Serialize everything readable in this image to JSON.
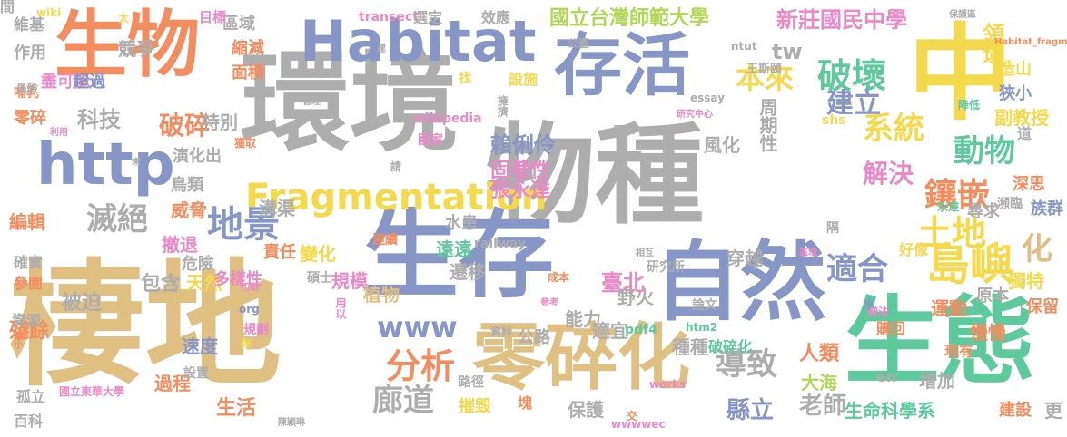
{
  "palette": {
    "tan": "#e0bf83",
    "blue": "#8796c6",
    "gray": "#adadad",
    "orange": "#f38c5f",
    "yellow": "#f5d94d",
    "green": "#5ec99c",
    "pink": "#e98ac5",
    "lime": "#b2d65a"
  },
  "words": [
    {
      "text": "棲地",
      "color": "tan"
    },
    {
      "text": "環境",
      "color": "gray"
    },
    {
      "text": "物種",
      "color": "gray"
    },
    {
      "text": "生存",
      "color": "blue"
    },
    {
      "text": "生態",
      "color": "green"
    },
    {
      "text": "生物",
      "color": "orange"
    },
    {
      "text": "中",
      "color": "yellow"
    },
    {
      "text": "自然",
      "color": "blue"
    },
    {
      "text": "零碎化",
      "color": "tan"
    },
    {
      "text": "存活",
      "color": "blue"
    },
    {
      "text": "Habitat",
      "color": "blue"
    },
    {
      "text": "http",
      "color": "blue"
    },
    {
      "text": "Fragmentation",
      "color": "yellow"
    },
    {
      "text": "www",
      "color": "blue"
    },
    {
      "text": "破壞",
      "color": "green"
    },
    {
      "text": "島嶼",
      "color": "yellow"
    },
    {
      "text": "鑲嵌",
      "color": "orange"
    },
    {
      "text": "土地",
      "color": "yellow"
    },
    {
      "text": "地景",
      "color": "blue"
    },
    {
      "text": "滅絕",
      "color": "gray"
    },
    {
      "text": "分析",
      "color": "orange"
    },
    {
      "text": "廊道",
      "color": "gray"
    },
    {
      "text": "導致",
      "color": "gray"
    },
    {
      "text": "適合",
      "color": "blue"
    },
    {
      "text": "系統",
      "color": "yellow"
    },
    {
      "text": "動物",
      "color": "green"
    },
    {
      "text": "本來",
      "color": "yellow"
    },
    {
      "text": "建立",
      "color": "blue"
    },
    {
      "text": "解決",
      "color": "pink"
    },
    {
      "text": "破碎",
      "color": "orange"
    },
    {
      "text": "科技",
      "color": "gray"
    },
    {
      "text": "tw",
      "color": "gray"
    },
    {
      "text": "化",
      "color": "tan"
    },
    {
      "text": "新莊國民中學",
      "color": "pink"
    },
    {
      "text": "國立台灣師範大學",
      "color": "lime"
    },
    {
      "text": "領域",
      "color": "yellow"
    },
    {
      "text": "臺北",
      "color": "pink"
    },
    {
      "text": "縣立",
      "color": "blue"
    },
    {
      "text": "老師",
      "color": "gray"
    },
    {
      "text": "賴俐伶",
      "color": "blue"
    },
    {
      "text": "固著性",
      "color": "pink"
    },
    {
      "text": "張永達",
      "color": "pink"
    },
    {
      "text": "周期性",
      "color": "gray"
    },
    {
      "text": "副教授",
      "color": "yellow"
    },
    {
      "text": "狹小",
      "color": "blue"
    },
    {
      "text": "造山",
      "color": "yellow"
    },
    {
      "text": "獨特",
      "color": "yellow"
    },
    {
      "text": "保留",
      "color": "orange"
    },
    {
      "text": "原本",
      "color": "gray"
    },
    {
      "text": "運動",
      "color": "orange"
    },
    {
      "text": "慢慢",
      "color": "orange"
    },
    {
      "text": "購回",
      "color": "orange"
    },
    {
      "text": "好像",
      "color": "yellow"
    },
    {
      "text": "增加",
      "color": "gray"
    },
    {
      "text": "大海",
      "color": "lime"
    },
    {
      "text": "人類",
      "color": "orange"
    },
    {
      "text": "生命科學系",
      "color": "green"
    },
    {
      "text": "建設",
      "color": "orange"
    },
    {
      "text": "更",
      "color": "gray"
    },
    {
      "text": "現有",
      "color": "orange"
    },
    {
      "text": "辦法",
      "color": "pink"
    },
    {
      "text": "穿越",
      "color": "gray"
    },
    {
      "text": "野火",
      "color": "gray"
    },
    {
      "text": "能力",
      "color": "gray"
    },
    {
      "text": "遷移",
      "color": "gray"
    },
    {
      "text": "遠遠",
      "color": "green"
    },
    {
      "text": "水患",
      "color": "gray"
    },
    {
      "text": "適宜",
      "color": "gray"
    },
    {
      "text": "公路",
      "color": "gray"
    },
    {
      "text": "種種",
      "color": "gray"
    },
    {
      "text": "破碎化",
      "color": "green"
    },
    {
      "text": "摧毀",
      "color": "yellow"
    },
    {
      "text": "保護",
      "color": "gray"
    },
    {
      "text": "生活",
      "color": "orange"
    },
    {
      "text": "過程",
      "color": "orange"
    },
    {
      "text": "速度",
      "color": "blue"
    },
    {
      "text": "天然",
      "color": "yellow"
    },
    {
      "text": "危險",
      "color": "gray"
    },
    {
      "text": "包含",
      "color": "gray"
    },
    {
      "text": "被迫",
      "color": "gray"
    },
    {
      "text": "殘餘",
      "color": "orange"
    },
    {
      "text": "編輯",
      "color": "orange"
    },
    {
      "text": "撤退",
      "color": "pink"
    },
    {
      "text": "威脅",
      "color": "orange"
    },
    {
      "text": "鳥類",
      "color": "gray"
    },
    {
      "text": "演化出",
      "color": "gray"
    },
    {
      "text": "溝渠",
      "color": "gray"
    },
    {
      "text": "責任",
      "color": "orange"
    },
    {
      "text": "變化",
      "color": "yellow"
    },
    {
      "text": "規模",
      "color": "pink"
    },
    {
      "text": "多樣性",
      "color": "pink"
    },
    {
      "text": "植物",
      "color": "tan"
    },
    {
      "text": "特別",
      "color": "gray"
    },
    {
      "text": "風化",
      "color": "gray"
    },
    {
      "text": "擁擠",
      "color": "gray"
    },
    {
      "text": "設施",
      "color": "yellow"
    },
    {
      "text": "找",
      "color": "yellow"
    },
    {
      "text": "縮減",
      "color": "orange"
    },
    {
      "text": "面積",
      "color": "orange"
    },
    {
      "text": "區域",
      "color": "gray"
    },
    {
      "text": "目標",
      "color": "pink"
    },
    {
      "text": "太",
      "color": "yellow"
    },
    {
      "text": "維基",
      "color": "gray"
    },
    {
      "text": "作用",
      "color": "gray"
    },
    {
      "text": "競爭",
      "color": "gray"
    },
    {
      "text": "盡可能",
      "color": "pink"
    },
    {
      "text": "超過",
      "color": "blue"
    },
    {
      "text": "零碎",
      "color": "orange"
    },
    {
      "text": "哺乳",
      "color": "orange"
    },
    {
      "text": "風險",
      "color": "gray"
    },
    {
      "text": "wiki",
      "color": "yellow"
    },
    {
      "text": "transect",
      "color": "pink"
    },
    {
      "text": "選定",
      "color": "gray"
    },
    {
      "text": "效應",
      "color": "gray"
    },
    {
      "text": "保護區",
      "color": "gray"
    },
    {
      "text": "Habitat_fragmentation",
      "color": "orange"
    },
    {
      "text": "王斯頤",
      "color": "gray"
    },
    {
      "text": "ntut",
      "color": "gray"
    },
    {
      "text": "公園",
      "color": "gray"
    },
    {
      "text": "wikipedia",
      "color": "pink"
    },
    {
      "text": "需求",
      "color": "gray"
    },
    {
      "text": "國家",
      "color": "pink"
    },
    {
      "text": "請",
      "color": "gray"
    },
    {
      "text": "獲取",
      "color": "orange"
    },
    {
      "text": "研究中心",
      "color": "pink"
    },
    {
      "text": "essay",
      "color": "gray"
    },
    {
      "text": "shs",
      "color": "yellow"
    },
    {
      "text": "降低",
      "color": "green"
    },
    {
      "text": "道",
      "color": "gray"
    },
    {
      "text": "深思",
      "color": "orange"
    },
    {
      "text": "尋求",
      "color": "gray"
    },
    {
      "text": "瀕臨",
      "color": "gray"
    },
    {
      "text": "族群",
      "color": "blue"
    },
    {
      "text": "永遠",
      "color": "green"
    },
    {
      "text": "隔",
      "color": "gray"
    },
    {
      "text": "連續",
      "color": "orange"
    },
    {
      "text": "railway",
      "color": "gray"
    },
    {
      "text": "相互",
      "color": "gray"
    },
    {
      "text": "研究所",
      "color": "gray"
    },
    {
      "text": "區塊",
      "color": "pink"
    },
    {
      "text": "成本",
      "color": "orange"
    },
    {
      "text": "參考",
      "color": "pink"
    },
    {
      "text": "論文",
      "color": "gray"
    },
    {
      "text": "htm2",
      "color": "green"
    },
    {
      "text": "pdf4",
      "color": "green"
    },
    {
      "text": "資料",
      "color": "gray"
    },
    {
      "text": "水",
      "color": "blue"
    },
    {
      "text": "works",
      "color": "pink"
    },
    {
      "text": "en",
      "color": "gray"
    },
    {
      "text": "塊",
      "color": "orange"
    },
    {
      "text": "交",
      "color": "orange"
    },
    {
      "text": "wwwwec",
      "color": "pink"
    },
    {
      "text": "陳穎琳",
      "color": "gray"
    },
    {
      "text": "國立東華大學",
      "color": "pink"
    },
    {
      "text": "百科",
      "color": "gray"
    },
    {
      "text": "孤立",
      "color": "gray"
    },
    {
      "text": "設置",
      "color": "gray"
    },
    {
      "text": "規劃",
      "color": "pink"
    },
    {
      "text": "恢",
      "color": "yellow"
    },
    {
      "text": "org",
      "color": "blue"
    },
    {
      "text": "縮小",
      "color": "orange"
    },
    {
      "text": "資源",
      "color": "gray"
    },
    {
      "text": "參閱",
      "color": "orange"
    },
    {
      "text": "確實",
      "color": "gray"
    },
    {
      "text": "切割",
      "color": "pink"
    },
    {
      "text": "碩士",
      "color": "gray"
    },
    {
      "text": "用以",
      "color": "pink"
    },
    {
      "text": "未",
      "color": "gray"
    },
    {
      "text": "利用",
      "color": "pink"
    },
    {
      "text": "建",
      "color": "gray"
    },
    {
      "text": "管理",
      "color": "gray"
    },
    {
      "text": "路徑",
      "color": "gray"
    },
    {
      "text": "間",
      "color": "gray"
    }
  ]
}
